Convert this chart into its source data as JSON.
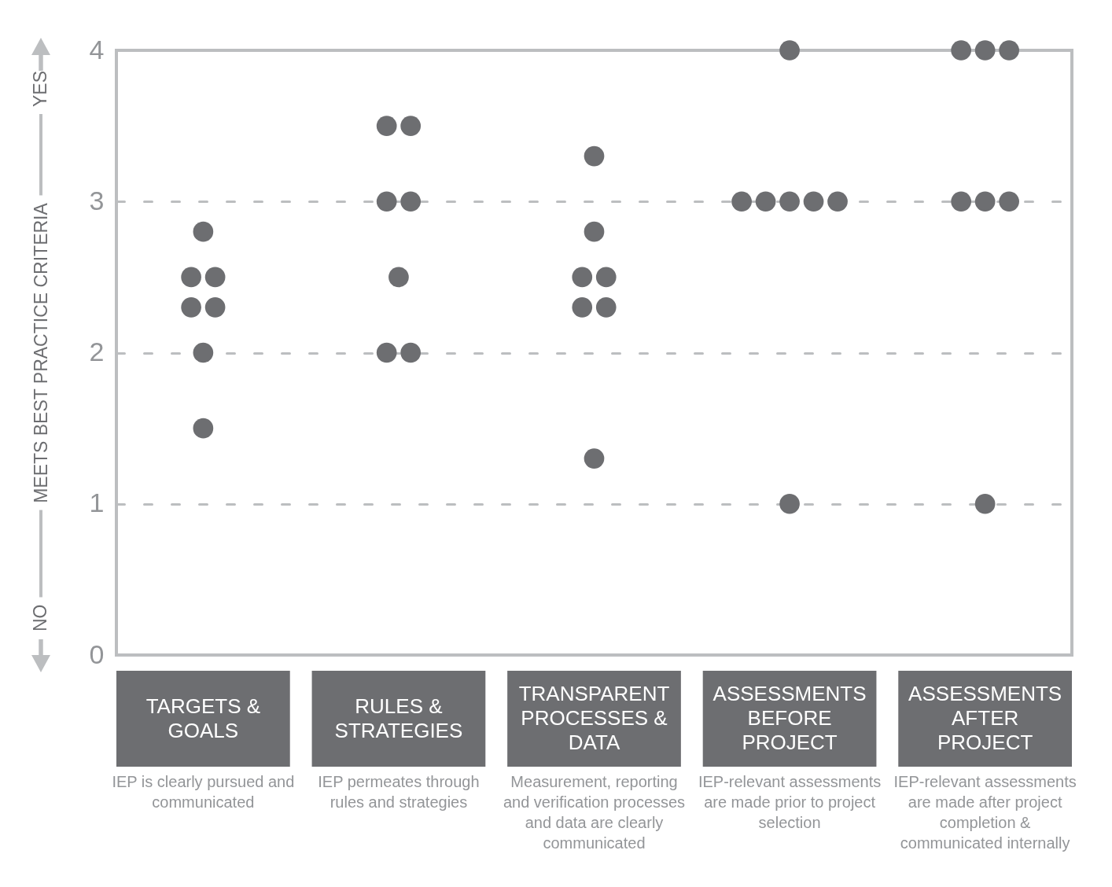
{
  "chart_data": {
    "type": "scatter",
    "ylabel": "MEETS BEST PRACTICE CRITERIA",
    "categories": [
      "TARGETS & GOALS",
      "RULES & STRATEGIES",
      "TRANSPARENT PROCESSES & DATA",
      "ASSESSMENTS BEFORE PROJECT",
      "ASSESSMENTS AFTER PROJECT"
    ],
    "series": [
      {
        "color": "#6d6e71",
        "x": [
          "TARGETS & GOALS",
          "TARGETS & GOALS",
          "TARGETS & GOALS",
          "TARGETS & GOALS",
          "TARGETS & GOALS",
          "TARGETS & GOALS",
          "TARGETS & GOALS",
          "RULES & STRATEGIES",
          "RULES & STRATEGIES",
          "RULES & STRATEGIES",
          "RULES & STRATEGIES",
          "RULES & STRATEGIES",
          "RULES & STRATEGIES",
          "RULES & STRATEGIES",
          "TRANSPARENT PROCESSES & DATA",
          "TRANSPARENT PROCESSES & DATA",
          "TRANSPARENT PROCESSES & DATA",
          "TRANSPARENT PROCESSES & DATA",
          "TRANSPARENT PROCESSES & DATA",
          "TRANSPARENT PROCESSES & DATA",
          "TRANSPARENT PROCESSES & DATA",
          "ASSESSMENTS BEFORE PROJECT",
          "ASSESSMENTS BEFORE PROJECT",
          "ASSESSMENTS BEFORE PROJECT",
          "ASSESSMENTS BEFORE PROJECT",
          "ASSESSMENTS BEFORE PROJECT",
          "ASSESSMENTS BEFORE PROJECT",
          "ASSESSMENTS BEFORE PROJECT",
          "ASSESSMENTS AFTER PROJECT",
          "ASSESSMENTS AFTER PROJECT",
          "ASSESSMENTS AFTER PROJECT",
          "ASSESSMENTS AFTER PROJECT",
          "ASSESSMENTS AFTER PROJECT",
          "ASSESSMENTS AFTER PROJECT",
          "ASSESSMENTS AFTER PROJECT"
        ],
        "values": [
          2.8,
          2.5,
          2.5,
          2.3,
          2.3,
          2,
          1.5,
          3.5,
          3.5,
          3,
          3,
          2.5,
          2,
          2,
          3.3,
          2.8,
          2.5,
          2.5,
          2.3,
          2.3,
          1.3,
          4,
          3,
          3,
          3,
          3,
          3,
          1,
          4,
          4,
          4,
          3,
          3,
          3,
          1
        ]
      }
    ],
    "ylim": [
      0,
      4
    ],
    "yticks": [
      0,
      1,
      2,
      3,
      4
    ],
    "grid": "y",
    "marker": "circle",
    "annotations": [
      "NO",
      "YES",
      "IEP is clearly pursued and communicated",
      "IEP permeates through rules and strategies",
      "Measurement, reporting and verification processes and data are clearly communicated",
      "IEP-relevant assessments are made prior to project selection",
      "IEP-relevant assessments are made after project completion & communicated internally"
    ]
  }
}
